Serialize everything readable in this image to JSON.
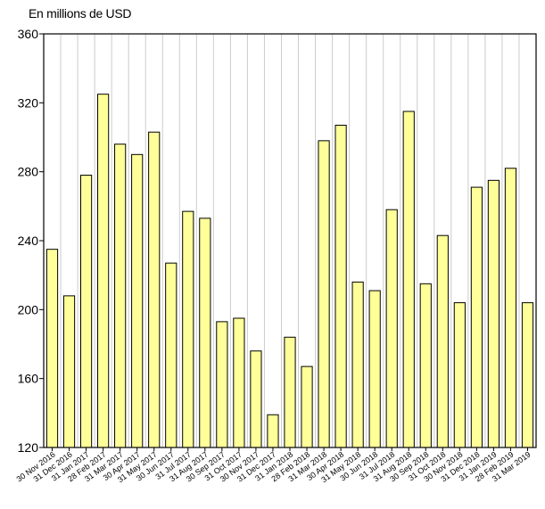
{
  "chart_data": {
    "type": "bar",
    "unit_label": "En millions de USD",
    "ylim": [
      120,
      360
    ],
    "y_ticks": [
      120,
      160,
      200,
      240,
      280,
      320,
      360
    ],
    "grid": "vertical",
    "bar_fill": "#ffff99",
    "bar_stroke": "#000000",
    "grid_color": "#cccccc",
    "categories": [
      "30 Nov 2016",
      "31 Dec 2016",
      "31 Jan 2017",
      "28 Feb 2017",
      "31 Mar 2017",
      "30 Apr 2017",
      "31 May 2017",
      "30 Jun 2017",
      "31 Jul 2017",
      "31 Aug 2017",
      "30 Sep 2017",
      "31 Oct 2017",
      "30 Nov 2017",
      "31 Dec 2017",
      "31 Jan 2018",
      "28 Feb 2018",
      "31 Mar 2018",
      "30 Apr 2018",
      "31 May 2018",
      "30 Jun 2018",
      "31 Jul 2018",
      "31 Aug 2018",
      "30 Sep 2018",
      "31 Oct 2018",
      "30 Nov 2018",
      "31 Dec 2018",
      "31 Jan 2019",
      "28 Feb 2019",
      "31 Mar 2019"
    ],
    "values": [
      235,
      208,
      278,
      325,
      296,
      290,
      303,
      227,
      257,
      253,
      193,
      195,
      176,
      139,
      184,
      167,
      298,
      307,
      216,
      211,
      258,
      315,
      215,
      243,
      204,
      271,
      275,
      282,
      204
    ]
  }
}
